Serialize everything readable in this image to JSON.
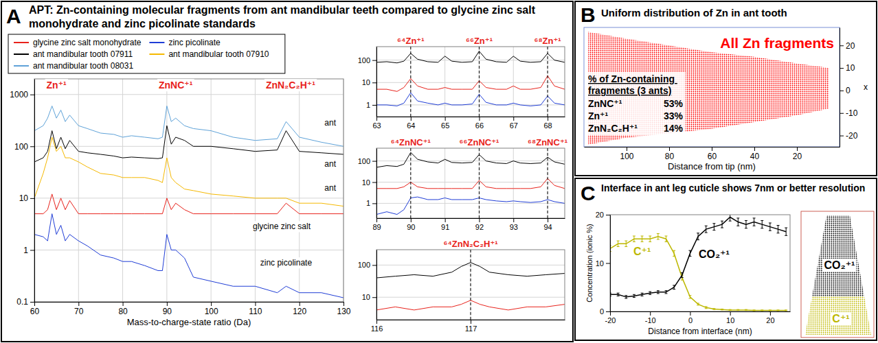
{
  "chart_data": [
    {
      "type": "line",
      "panel": "A",
      "title": "APT: Zn-containing molecular fragments from ant mandibular teeth compared to glycine zinc salt monohydrate and zinc picolinate standards",
      "xlabel": "Mass-to-charge-state ratio (Da)",
      "log": "y",
      "grid": true,
      "legend": "top-left",
      "xlim": [
        60,
        130
      ],
      "xticks": [
        60,
        70,
        80,
        90,
        100,
        110,
        120,
        130
      ],
      "ylim": [
        0.1,
        2000
      ],
      "yticks": [
        0.1,
        1,
        10,
        100,
        1000
      ],
      "x": [
        60,
        62,
        63,
        64,
        65,
        66,
        67,
        68,
        70,
        72,
        75,
        78,
        80,
        82,
        85,
        88,
        89,
        90,
        91,
        92,
        94,
        96,
        100,
        105,
        110,
        115,
        117,
        120,
        125,
        130
      ],
      "series": [
        {
          "name": "glycine zinc salt monohydrate",
          "color": "#e8221b",
          "values": [
            5,
            5,
            6,
            12,
            6,
            10,
            6,
            9,
            5,
            5,
            5,
            5,
            5,
            5,
            5,
            5,
            5,
            10,
            6,
            8,
            6,
            5,
            5,
            5,
            5,
            5,
            8,
            5,
            5,
            5
          ]
        },
        {
          "name": "zinc picolinate",
          "color": "#1f3dd6",
          "values": [
            2,
            1.8,
            1.5,
            5,
            2,
            3,
            1.5,
            2,
            1.5,
            1.2,
            0.8,
            0.7,
            0.6,
            0.6,
            0.5,
            0.4,
            0.4,
            2,
            1,
            1,
            0.7,
            0.3,
            0.25,
            0.2,
            0.2,
            0.15,
            0.2,
            0.15,
            0.15,
            0.12
          ]
        },
        {
          "name": "ant mandibular tooth 07911",
          "color": "#000000",
          "values": [
            50,
            60,
            80,
            200,
            90,
            150,
            90,
            130,
            80,
            75,
            70,
            65,
            60,
            62,
            60,
            58,
            60,
            250,
            110,
            150,
            130,
            100,
            100,
            90,
            80,
            85,
            200,
            80,
            75,
            70
          ]
        },
        {
          "name": "ant mandibular tooth 07910",
          "color": "#f5b800",
          "values": [
            10,
            30,
            60,
            150,
            80,
            100,
            60,
            60,
            50,
            40,
            30,
            28,
            25,
            25,
            25,
            22,
            20,
            60,
            25,
            20,
            15,
            14,
            12,
            11,
            10,
            10,
            10,
            8,
            8,
            7
          ]
        },
        {
          "name": "ant mandibular tooth 08031",
          "color": "#5ea2d8",
          "values": [
            200,
            250,
            350,
            600,
            350,
            500,
            300,
            400,
            250,
            220,
            180,
            170,
            150,
            160,
            150,
            140,
            150,
            600,
            300,
            350,
            250,
            220,
            200,
            150,
            130,
            140,
            300,
            150,
            120,
            100
          ]
        }
      ],
      "annotations": [
        {
          "text": "Zn⁺¹",
          "x": 65,
          "y": 1300,
          "color": "#e8221b"
        },
        {
          "text": "ZnNC⁺¹",
          "x": 92,
          "y": 1300,
          "color": "#e8221b"
        },
        {
          "text": "ZnN₂C₂H⁺¹",
          "x": 118,
          "y": 1300,
          "color": "#e8221b"
        },
        {
          "text": "ant",
          "x": 127,
          "y": 250,
          "color": "#000000"
        },
        {
          "text": "ant",
          "x": 127,
          "y": 40,
          "color": "#000000"
        },
        {
          "text": "ant",
          "x": 127,
          "y": 14,
          "color": "#000000"
        },
        {
          "text": "glycine zinc salt",
          "x": 116,
          "y": 2.5,
          "color": "#000000"
        },
        {
          "text": "zinc picolinate",
          "x": 117,
          "y": 0.5,
          "color": "#000000"
        }
      ]
    },
    {
      "type": "line",
      "log": "y",
      "grid": true,
      "xlim": [
        63,
        68.5
      ],
      "xticks": [
        63,
        64,
        65,
        66,
        67,
        68
      ],
      "ylim": [
        0.3,
        400
      ],
      "yticks": [
        1,
        10,
        100
      ],
      "x": [
        63,
        63.3,
        63.6,
        63.8,
        64,
        64.2,
        64.5,
        64.8,
        65,
        65.2,
        65.5,
        65.8,
        66,
        66.2,
        66.5,
        66.8,
        67,
        67.2,
        67.5,
        67.8,
        68,
        68.2,
        68.5
      ],
      "series": [
        {
          "color": "#000000",
          "values": [
            80,
            85,
            75,
            90,
            200,
            110,
            85,
            80,
            150,
            90,
            80,
            85,
            250,
            110,
            85,
            80,
            150,
            90,
            80,
            85,
            200,
            100,
            80
          ]
        },
        {
          "color": "#e8221b",
          "values": [
            5,
            5,
            4,
            6,
            15,
            7,
            5,
            5,
            6,
            5,
            5,
            5,
            12,
            6,
            5,
            5,
            7,
            5,
            5,
            6,
            20,
            7,
            5
          ]
        },
        {
          "color": "#1f3dd6",
          "values": [
            1,
            1,
            0.9,
            1.2,
            3.5,
            1.5,
            1.2,
            1,
            1.2,
            1,
            1,
            1.1,
            3,
            1.3,
            1,
            1,
            1.2,
            1,
            0.9,
            1,
            2.5,
            1.2,
            1
          ]
        }
      ],
      "annotations": [
        {
          "text": "⁶⁴Zn⁺¹",
          "x": 64,
          "color": "#e8221b"
        },
        {
          "text": "⁶⁶Zn⁺¹",
          "x": 66,
          "color": "#e8221b"
        },
        {
          "text": "⁶⁸Zn⁺¹",
          "x": 68,
          "color": "#e8221b"
        }
      ]
    },
    {
      "type": "line",
      "log": "y",
      "grid": true,
      "xlim": [
        89,
        94.5
      ],
      "xticks": [
        89,
        90,
        91,
        92,
        93,
        94
      ],
      "ylim": [
        0.2,
        400
      ],
      "yticks": [
        1,
        10,
        100
      ],
      "x": [
        89,
        89.3,
        89.6,
        89.8,
        90,
        90.2,
        90.5,
        90.8,
        91,
        91.2,
        91.5,
        91.8,
        92,
        92.2,
        92.5,
        92.8,
        93,
        93.2,
        93.5,
        93.8,
        94,
        94.2,
        94.5
      ],
      "series": [
        {
          "color": "#000000",
          "values": [
            50,
            60,
            55,
            70,
            250,
            120,
            90,
            80,
            120,
            85,
            80,
            85,
            200,
            100,
            80,
            75,
            100,
            80,
            75,
            80,
            150,
            90,
            70
          ]
        },
        {
          "color": "#e8221b",
          "values": [
            5,
            5,
            5,
            6,
            10,
            6,
            5,
            5,
            5,
            5,
            5,
            5,
            12,
            6,
            5,
            5,
            5,
            5,
            5,
            6,
            15,
            7,
            5
          ]
        },
        {
          "color": "#1f3dd6",
          "values": [
            0.3,
            0.4,
            0.3,
            0.5,
            1.8,
            2,
            1.5,
            1.5,
            1.8,
            1.5,
            1.5,
            1.5,
            1.8,
            1.5,
            1.3,
            1.2,
            1.3,
            1.2,
            1.1,
            1.2,
            1.5,
            1.2,
            1
          ]
        }
      ],
      "annotations": [
        {
          "text": "⁶⁴ZnNC⁺¹",
          "x": 90,
          "color": "#e8221b"
        },
        {
          "text": "⁶⁶ZnNC⁺¹",
          "x": 92,
          "color": "#e8221b"
        },
        {
          "text": "⁶⁸ZnNC⁺¹",
          "x": 94,
          "color": "#e8221b"
        }
      ]
    },
    {
      "type": "line",
      "log": "y",
      "grid": true,
      "xlim": [
        116,
        118
      ],
      "xticks": [
        116,
        117
      ],
      "ylim": [
        2,
        300
      ],
      "yticks": [
        10,
        100
      ],
      "x": [
        116,
        116.2,
        116.4,
        116.6,
        116.8,
        116.9,
        117,
        117.1,
        117.2,
        117.4,
        117.6,
        117.8,
        118
      ],
      "series": [
        {
          "color": "#000000",
          "values": [
            40,
            45,
            50,
            45,
            60,
            90,
            120,
            90,
            60,
            50,
            45,
            50,
            55
          ]
        },
        {
          "color": "#e8221b",
          "values": [
            4,
            5,
            4,
            5,
            5,
            6,
            8,
            6,
            5,
            4,
            5,
            5,
            6
          ]
        }
      ],
      "annotations": [
        {
          "text": "⁶⁴ZnN₂C₂H⁺¹",
          "x": 117,
          "color": "#e8221b"
        }
      ]
    },
    {
      "type": "area",
      "panel": "B",
      "title": "Uniform distribution of Zn in ant tooth",
      "xlabel": "Distance from tip (nm)",
      "ylabel": "x",
      "grid": false,
      "xlim": [
        120,
        0
      ],
      "xticks": [
        100,
        80,
        60,
        40,
        20
      ],
      "ylim": [
        -25,
        28
      ],
      "yticks": [
        20,
        10,
        0,
        -10,
        -20
      ],
      "x": [
        118,
        100,
        80,
        60,
        40,
        20,
        5
      ],
      "series": [
        {
          "name": "All Zn fragments",
          "color": "#ff0000",
          "values": [
            26,
            23,
            20,
            17,
            15,
            12,
            10
          ],
          "low": [
            -24,
            -21,
            -19,
            -17,
            -14,
            -11,
            -8
          ]
        }
      ],
      "table": {
        "title": "% of Zn-containing fragments (3 ants)",
        "rows": [
          [
            "ZnNC⁺¹",
            "53%"
          ],
          [
            "Zn⁺¹",
            "33%"
          ],
          [
            "ZnN₂C₂H⁺¹",
            "14%"
          ]
        ]
      }
    },
    {
      "type": "line",
      "panel": "C",
      "title": "Interface in ant leg cuticle shows 7nm or better resolution",
      "xlabel": "Distance from interface (nm)",
      "ylabel": "Concentration (ionic %)",
      "grid": false,
      "xlim": [
        -20,
        25
      ],
      "xticks": [
        -20,
        -10,
        0,
        10,
        20
      ],
      "ylim": [
        0,
        20
      ],
      "yticks": [
        0,
        10,
        20
      ],
      "x": [
        -20,
        -18,
        -16,
        -14,
        -12,
        -10,
        -8,
        -6,
        -4,
        -2,
        0,
        2,
        4,
        6,
        8,
        10,
        12,
        14,
        16,
        18,
        20,
        22,
        24
      ],
      "series": [
        {
          "name": "C⁺¹",
          "color": "#bdb800",
          "values": [
            13,
            14,
            14,
            15,
            15,
            15,
            15.5,
            15,
            12,
            7,
            3,
            1.5,
            0.8,
            0.5,
            0.4,
            0.3,
            0.3,
            0.3,
            0.2,
            0.2,
            0.2,
            0.2,
            0.2
          ],
          "errors": [
            0.6,
            0.6,
            0.6,
            0.6,
            0.6,
            0.6,
            0.6,
            0.6,
            0.6,
            0.5,
            0.3,
            0.2,
            0.2,
            0.1,
            0.1,
            0.1,
            0.1,
            0.1,
            0.1,
            0.1,
            0.1,
            0.1,
            0.1
          ]
        },
        {
          "name": "CO₂⁺¹",
          "color": "#000000",
          "values": [
            3.5,
            3.5,
            3,
            3.2,
            3.5,
            3.8,
            4,
            4,
            5,
            7.5,
            12,
            15.5,
            17,
            17.5,
            18,
            19.5,
            18.5,
            18,
            18.5,
            18,
            17.5,
            17,
            16.5
          ],
          "errors": [
            0.3,
            0.3,
            0.3,
            0.3,
            0.3,
            0.3,
            0.3,
            0.3,
            0.4,
            0.5,
            0.6,
            0.7,
            0.7,
            0.7,
            0.7,
            0.8,
            0.8,
            0.8,
            0.8,
            0.8,
            0.8,
            0.8,
            0.8
          ]
        }
      ]
    }
  ]
}
